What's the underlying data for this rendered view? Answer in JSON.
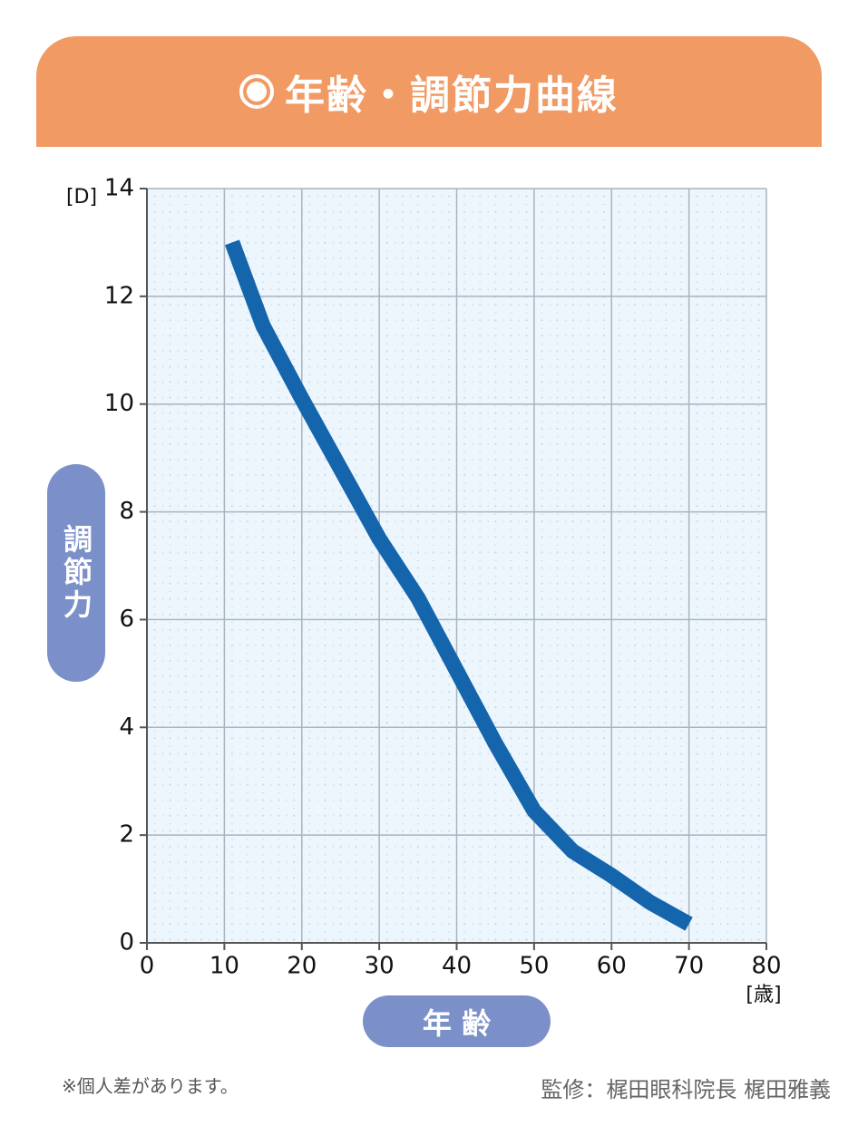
{
  "chart_data": {
    "type": "line",
    "title": "年齢・調節力曲線",
    "xlabel": "年 齢",
    "ylabel": "調節力",
    "xunit": "[歳]",
    "yunit": "[D]",
    "x": [
      11,
      15,
      20,
      25,
      30,
      35,
      40,
      45,
      50,
      55,
      60,
      65,
      70
    ],
    "values": [
      13.0,
      11.45,
      10.1,
      8.8,
      7.5,
      6.4,
      5.05,
      3.7,
      2.45,
      1.7,
      1.25,
      0.75,
      0.35
    ],
    "color": "#1565ad",
    "xlim": [
      0,
      80
    ],
    "xticks": [
      0,
      10,
      20,
      30,
      40,
      50,
      60,
      70,
      80
    ],
    "ylim": [
      0,
      14
    ],
    "yticks": [
      0,
      2,
      4,
      6,
      8,
      10,
      12,
      14
    ],
    "grid": true
  },
  "footer": {
    "note": "※個人差があります。",
    "supervisor": "監修：梶田眼科院長 梶田雅義"
  }
}
